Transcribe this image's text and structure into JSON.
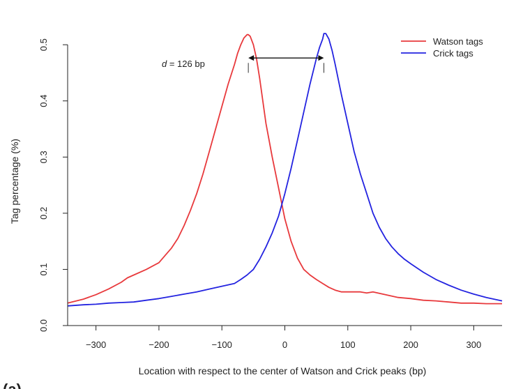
{
  "chart_data": {
    "type": "line",
    "title": "",
    "xlabel": "Location with respect to the center of Watson and Crick peaks (bp)",
    "ylabel": "Tag percentage (%)",
    "xlim": [
      -345,
      345
    ],
    "ylim": [
      0,
      0.53
    ],
    "x_ticks": [
      -300,
      -200,
      -100,
      0,
      100,
      200,
      300
    ],
    "x_tick_labels": [
      "−300",
      "−200",
      "−100",
      "0",
      "100",
      "200",
      "300"
    ],
    "y_ticks": [
      0.0,
      0.1,
      0.2,
      0.3,
      0.4,
      0.5
    ],
    "y_tick_labels": [
      "0.0",
      "0.1",
      "0.2",
      "0.3",
      "0.4",
      "0.5"
    ],
    "grid": false,
    "legend_position": "top-right",
    "annotation": {
      "italic": "d",
      "text": " = 126 bp",
      "from_x": -58,
      "to_x": 62,
      "y": 0.5
    },
    "panel_label": "(a)",
    "series": [
      {
        "name": "Watson tags",
        "color": "#e8393c",
        "x": [
          -345,
          -320,
          -300,
          -280,
          -260,
          -250,
          -240,
          -220,
          -200,
          -190,
          -180,
          -170,
          -160,
          -150,
          -140,
          -130,
          -120,
          -110,
          -100,
          -90,
          -80,
          -75,
          -70,
          -65,
          -60,
          -58,
          -55,
          -50,
          -45,
          -40,
          -35,
          -30,
          -25,
          -20,
          -10,
          0,
          10,
          20,
          30,
          40,
          50,
          60,
          70,
          80,
          90,
          100,
          110,
          120,
          130,
          140,
          160,
          180,
          200,
          220,
          240,
          260,
          280,
          300,
          320,
          345
        ],
        "y": [
          0.04,
          0.047,
          0.055,
          0.065,
          0.077,
          0.085,
          0.09,
          0.1,
          0.112,
          0.125,
          0.138,
          0.155,
          0.178,
          0.205,
          0.235,
          0.27,
          0.31,
          0.35,
          0.39,
          0.43,
          0.465,
          0.485,
          0.5,
          0.512,
          0.518,
          0.518,
          0.515,
          0.5,
          0.475,
          0.44,
          0.4,
          0.36,
          0.33,
          0.3,
          0.245,
          0.19,
          0.15,
          0.12,
          0.1,
          0.09,
          0.082,
          0.075,
          0.068,
          0.063,
          0.06,
          0.06,
          0.06,
          0.06,
          0.058,
          0.06,
          0.055,
          0.05,
          0.048,
          0.045,
          0.044,
          0.042,
          0.04,
          0.04,
          0.039,
          0.039
        ]
      },
      {
        "name": "Crick tags",
        "color": "#2323e0",
        "x": [
          -345,
          -320,
          -300,
          -280,
          -260,
          -240,
          -220,
          -200,
          -180,
          -160,
          -140,
          -120,
          -100,
          -80,
          -70,
          -60,
          -50,
          -40,
          -30,
          -20,
          -10,
          0,
          10,
          20,
          30,
          40,
          50,
          55,
          60,
          62,
          65,
          70,
          75,
          80,
          90,
          100,
          110,
          120,
          130,
          140,
          150,
          160,
          170,
          180,
          190,
          200,
          220,
          240,
          260,
          280,
          300,
          320,
          345
        ],
        "y": [
          0.035,
          0.037,
          0.038,
          0.04,
          0.041,
          0.042,
          0.045,
          0.048,
          0.052,
          0.056,
          0.06,
          0.065,
          0.07,
          0.075,
          0.082,
          0.09,
          0.1,
          0.118,
          0.14,
          0.165,
          0.195,
          0.235,
          0.28,
          0.33,
          0.38,
          0.43,
          0.475,
          0.495,
          0.51,
          0.52,
          0.52,
          0.51,
          0.49,
          0.465,
          0.41,
          0.36,
          0.31,
          0.27,
          0.235,
          0.2,
          0.175,
          0.155,
          0.14,
          0.128,
          0.118,
          0.11,
          0.095,
          0.082,
          0.072,
          0.063,
          0.056,
          0.05,
          0.044
        ]
      }
    ]
  }
}
